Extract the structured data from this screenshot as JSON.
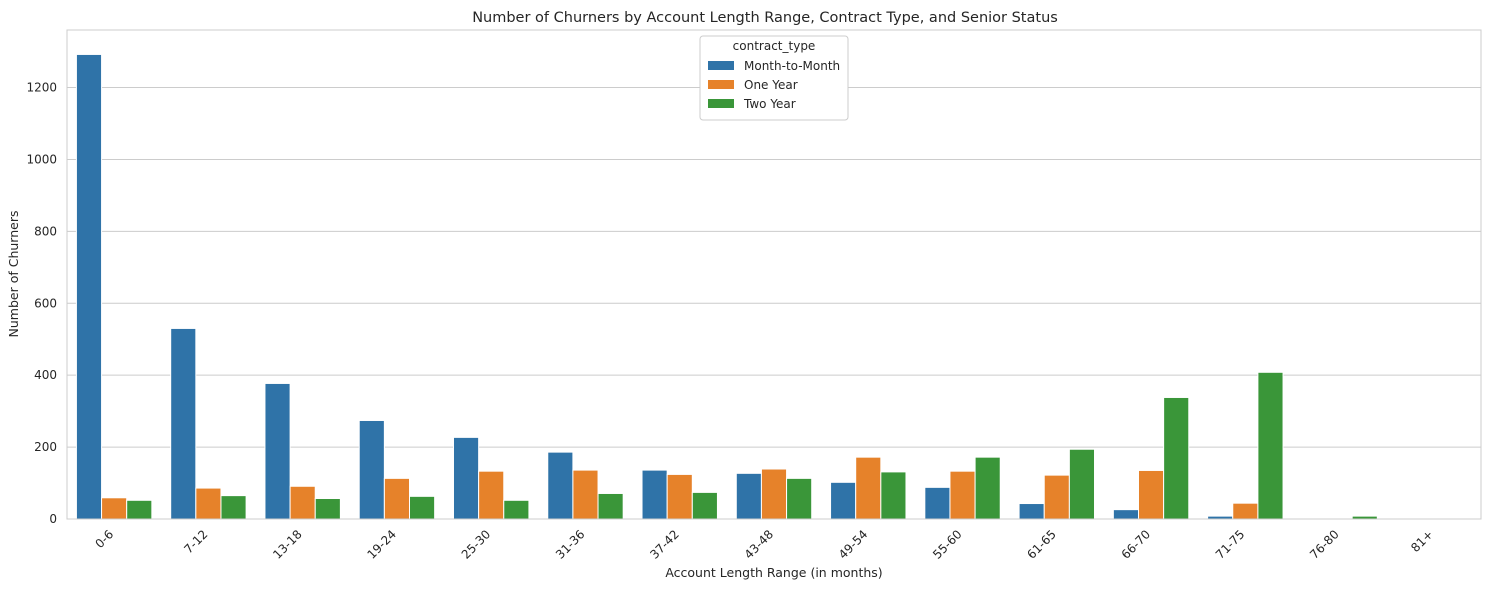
{
  "chart_data": {
    "type": "bar",
    "title": "Number of Churners by Account Length Range, Contract Type, and Senior Status",
    "xlabel": "Account Length Range (in months)",
    "ylabel": "Number of Churners",
    "categories": [
      "0-6",
      "7-12",
      "13-18",
      "19-24",
      "25-30",
      "31-36",
      "37-42",
      "43-48",
      "49-54",
      "55-60",
      "61-65",
      "66-70",
      "71-75",
      "76-80",
      "81+"
    ],
    "series": [
      {
        "name": "Month-to-Month",
        "color": "#2f73a8",
        "values": [
          1292,
          530,
          377,
          274,
          227,
          186,
          136,
          127,
          102,
          88,
          43,
          26,
          8,
          0,
          0
        ]
      },
      {
        "name": "One Year",
        "color": "#e6822a",
        "values": [
          59,
          86,
          91,
          113,
          133,
          136,
          124,
          139,
          172,
          133,
          122,
          135,
          44,
          0,
          0
        ]
      },
      {
        "name": "Two Year",
        "color": "#3a9639",
        "values": [
          52,
          65,
          57,
          63,
          52,
          71,
          74,
          113,
          131,
          172,
          194,
          338,
          408,
          8,
          0
        ]
      }
    ],
    "yticks": [
      0,
      200,
      400,
      600,
      800,
      1000,
      1200
    ],
    "ylim": [
      0,
      1360
    ],
    "grid": "y",
    "legend": {
      "title": "contract_type",
      "placement": "top-center"
    }
  }
}
